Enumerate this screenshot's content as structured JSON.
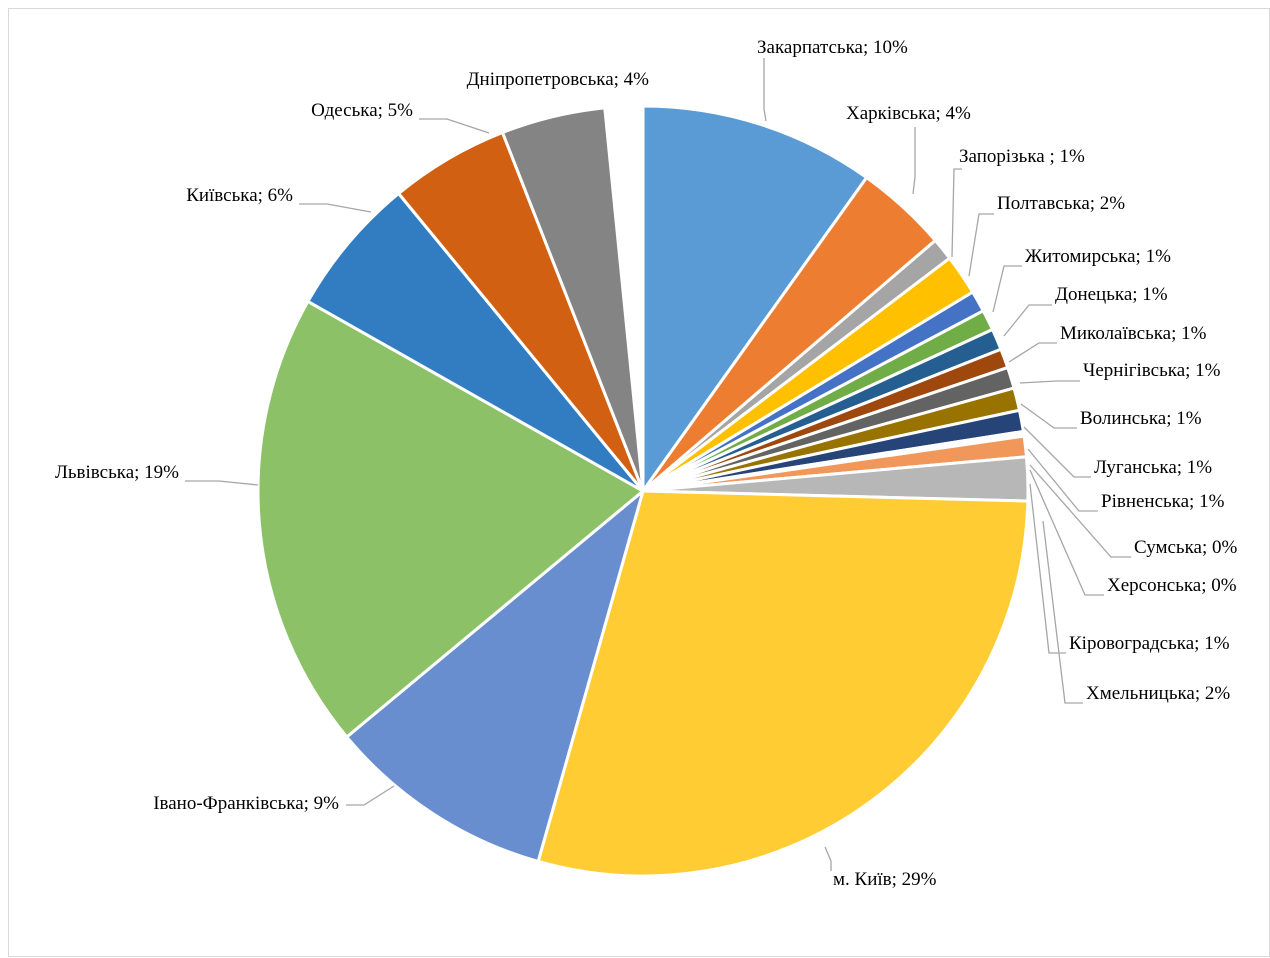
{
  "chart_data": {
    "type": "pie",
    "title": "",
    "legend": "none",
    "slices": [
      {
        "label": "Закарпатська",
        "value": 10,
        "value_label": "10%",
        "color": "#5B9BD5"
      },
      {
        "label": "Харківська",
        "value": 4,
        "value_label": "4%",
        "color": "#ED7D31"
      },
      {
        "label": "Запорізька ",
        "value": 1,
        "value_label": "1%",
        "color": "#A5A5A5"
      },
      {
        "label": "Полтавська",
        "value": 2,
        "value_label": "2%",
        "color": "#FFC000"
      },
      {
        "label": "Житомирська",
        "value": 1,
        "value_label": "1%",
        "color": "#4472C4"
      },
      {
        "label": "Донецька",
        "value": 1,
        "value_label": "1%",
        "color": "#70AD47"
      },
      {
        "label": "Миколаївська",
        "value": 1,
        "value_label": "1%",
        "color": "#255E91"
      },
      {
        "label": "Чернігівська",
        "value": 1,
        "value_label": "1%",
        "color": "#9E480E"
      },
      {
        "label": "Волинська",
        "value": 1,
        "value_label": "1%",
        "color": "#636363"
      },
      {
        "label": "Луганська",
        "value": 1,
        "value_label": "1%",
        "color": "#997300"
      },
      {
        "label": "Рівненська",
        "value": 1,
        "value_label": "1%",
        "color": "#264478"
      },
      {
        "label": "Сумська",
        "value": 0,
        "value_label": "0%",
        "color": "#43682B"
      },
      {
        "label": "Херсонська",
        "value": 0,
        "value_label": "0%",
        "color": "#698ED0"
      },
      {
        "label": "Кіровоградська",
        "value": 1,
        "value_label": "1%",
        "color": "#F1975A"
      },
      {
        "label": "Хмельницька",
        "value": 2,
        "value_label": "2%",
        "color": "#B7B7B7"
      },
      {
        "label": "м. Київ",
        "value": 29,
        "value_label": "29%",
        "color": "#FFCD33"
      },
      {
        "label": "Івано-Франківська",
        "value": 9,
        "value_label": "9%",
        "color": "#698ED0"
      },
      {
        "label": "Львівська",
        "value": 19,
        "value_label": "19%",
        "color": "#8CC168"
      },
      {
        "label": "Київська",
        "value": 6,
        "value_label": "6%",
        "color": "#327DC2"
      },
      {
        "label": "Одеська",
        "value": 5,
        "value_label": "5%",
        "color": "#D26012"
      },
      {
        "label": "Дніпропетровська",
        "value": 4,
        "value_label": "4%",
        "color": "#848484"
      }
    ]
  }
}
